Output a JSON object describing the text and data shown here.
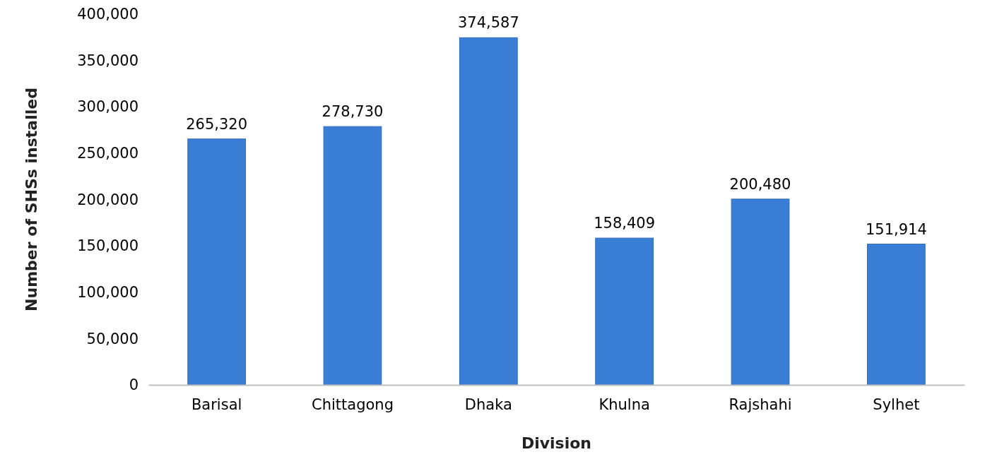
{
  "chart_data": {
    "type": "bar",
    "xlabel": "Division",
    "ylabel": "Number of SHSs installed",
    "categories": [
      "Barisal",
      "Chittagong",
      "Dhaka",
      "Khulna",
      "Rajshahi",
      "Sylhet"
    ],
    "values": [
      265320,
      278730,
      374587,
      158409,
      200480,
      151914
    ],
    "color": "#3a7dd4",
    "ylim": [
      0,
      400000
    ],
    "yticks": [
      {
        "value": 0,
        "label": "0"
      },
      {
        "value": 50000,
        "label": "50,000"
      },
      {
        "value": 100000,
        "label": "100,000"
      },
      {
        "value": 150000,
        "label": "150,000"
      },
      {
        "value": 200000,
        "label": "200,000"
      },
      {
        "value": 250000,
        "label": "250,000"
      },
      {
        "value": 300000,
        "label": "300,000"
      },
      {
        "value": 350000,
        "label": "350,000"
      },
      {
        "value": 400000,
        "label": "400,000"
      }
    ],
    "value_labels": [
      "265,320",
      "278,730",
      "374,587",
      "158,409",
      "200,480",
      "151,914"
    ],
    "grid": false
  }
}
